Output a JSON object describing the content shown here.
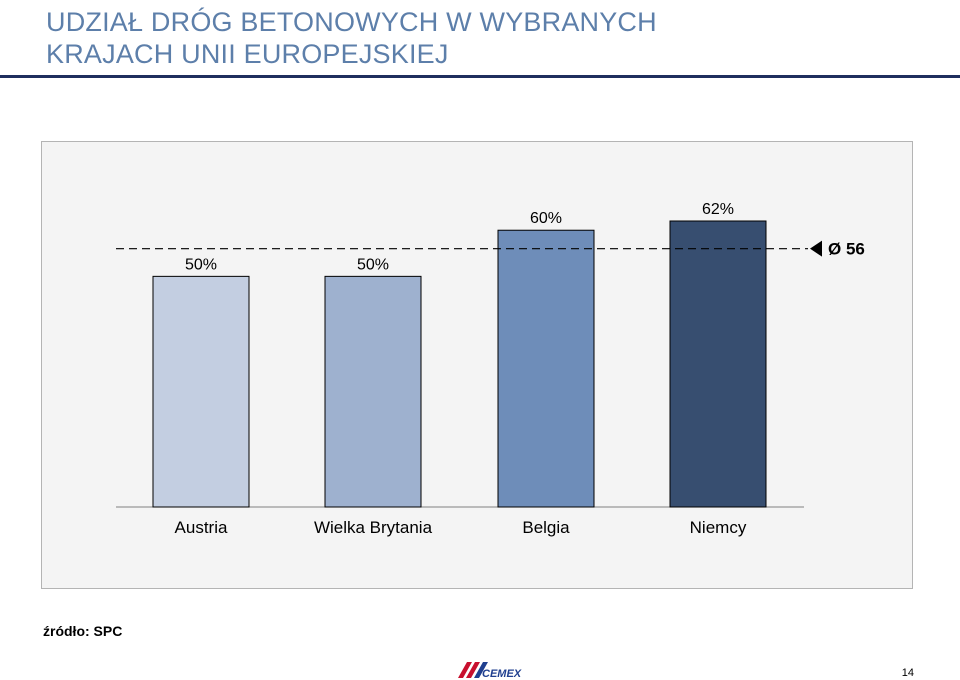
{
  "slide": {
    "title_line1": "UDZIAŁ DRÓG BETONOWYCH W WYBRANYCH",
    "title_line2": "KRAJACH UNII EUROPEJSKIEJ",
    "source": "źródło: SPC",
    "page_number": "14",
    "logo_text": "CEMEX"
  },
  "chart_data": {
    "type": "bar",
    "categories": [
      "Austria",
      "Wielka Brytania",
      "Belgia",
      "Niemcy"
    ],
    "values": [
      50,
      50,
      60,
      62
    ],
    "value_labels": [
      "50%",
      "50%",
      "60%",
      "62%"
    ],
    "colors": [
      "#c3cee1",
      "#9eb1cf",
      "#6e8db9",
      "#374e70"
    ],
    "average": {
      "value": 56,
      "label": "Ø 56"
    },
    "ylim": [
      0,
      62
    ],
    "grid": false,
    "legend": "none"
  }
}
